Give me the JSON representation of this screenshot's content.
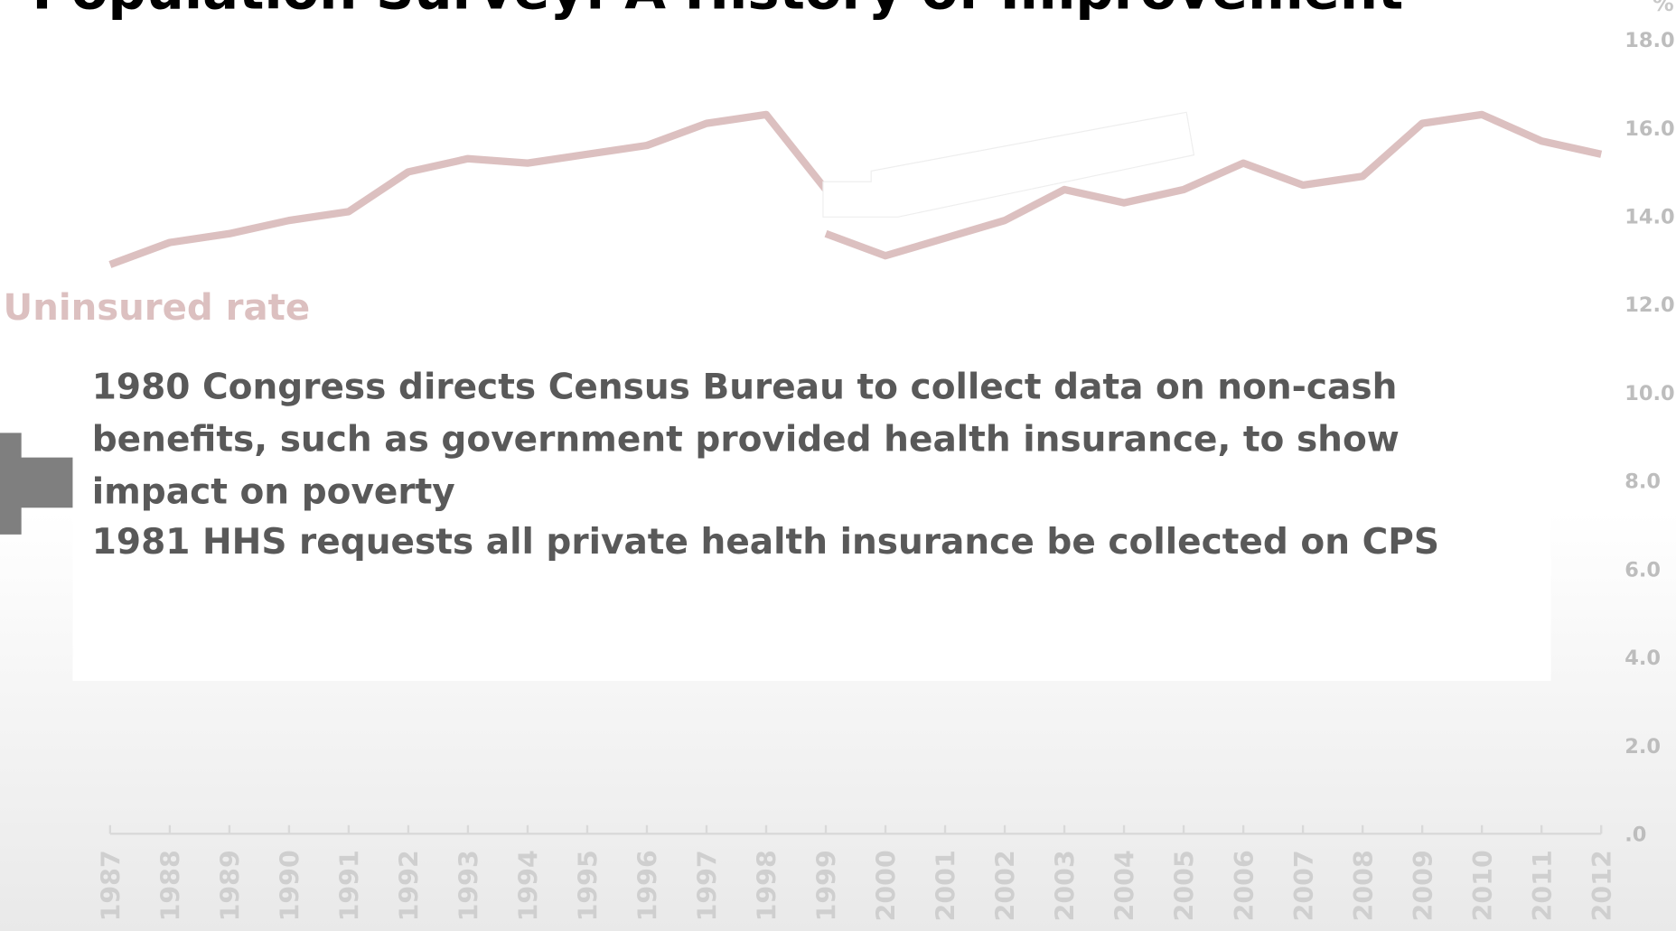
{
  "chart_data": {
    "type": "line",
    "title": "Population Survey: A History of Improvement",
    "y_label": "%",
    "categories": [
      "1987",
      "1988",
      "1989",
      "1990",
      "1991",
      "1992",
      "1993",
      "1994",
      "1995",
      "1996",
      "1997",
      "1998",
      "1999",
      "2000",
      "2001",
      "2002",
      "2003",
      "2004",
      "2005",
      "2006",
      "2007",
      "2008",
      "2009",
      "2010",
      "2011",
      "2012"
    ],
    "series": [
      {
        "name": "Uninsured rate",
        "color": "#dcc0c0",
        "values": [
          12.9,
          13.4,
          13.6,
          13.9,
          14.1,
          15.0,
          15.3,
          15.2,
          15.4,
          15.6,
          16.1,
          16.3,
          14.6,
          null,
          null,
          null,
          null,
          null,
          null,
          null,
          null,
          null,
          null,
          null,
          null,
          null
        ]
      },
      {
        "color": "#dcc0c0",
        "values": [
          null,
          null,
          null,
          null,
          null,
          null,
          null,
          null,
          null,
          null,
          null,
          null,
          13.6,
          13.1,
          13.5,
          13.9,
          14.6,
          14.3,
          14.6,
          15.2,
          14.7,
          14.9,
          16.1,
          16.3,
          15.7,
          15.4
        ]
      }
    ],
    "ylim": [
      0,
      18
    ],
    "yticks": [
      {
        "value": 0,
        "label": ".0"
      },
      {
        "value": 2,
        "label": "2.0"
      },
      {
        "value": 4,
        "label": "4.0"
      },
      {
        "value": 6,
        "label": "6.0"
      },
      {
        "value": 8,
        "label": "8.0"
      },
      {
        "value": 10,
        "label": "10.0"
      },
      {
        "value": 12,
        "label": "12.0"
      },
      {
        "value": 14,
        "label": "14.0"
      },
      {
        "value": 16,
        "label": "16.0"
      },
      {
        "value": 18,
        "label": "18.0"
      }
    ],
    "annotations": [
      "1980  Congress directs Census Bureau to collect data on non-cash benefits, such as government provided health insurance, to show impact on poverty",
      "1981  HHS requests all private health insurance be collected on CPS"
    ]
  }
}
